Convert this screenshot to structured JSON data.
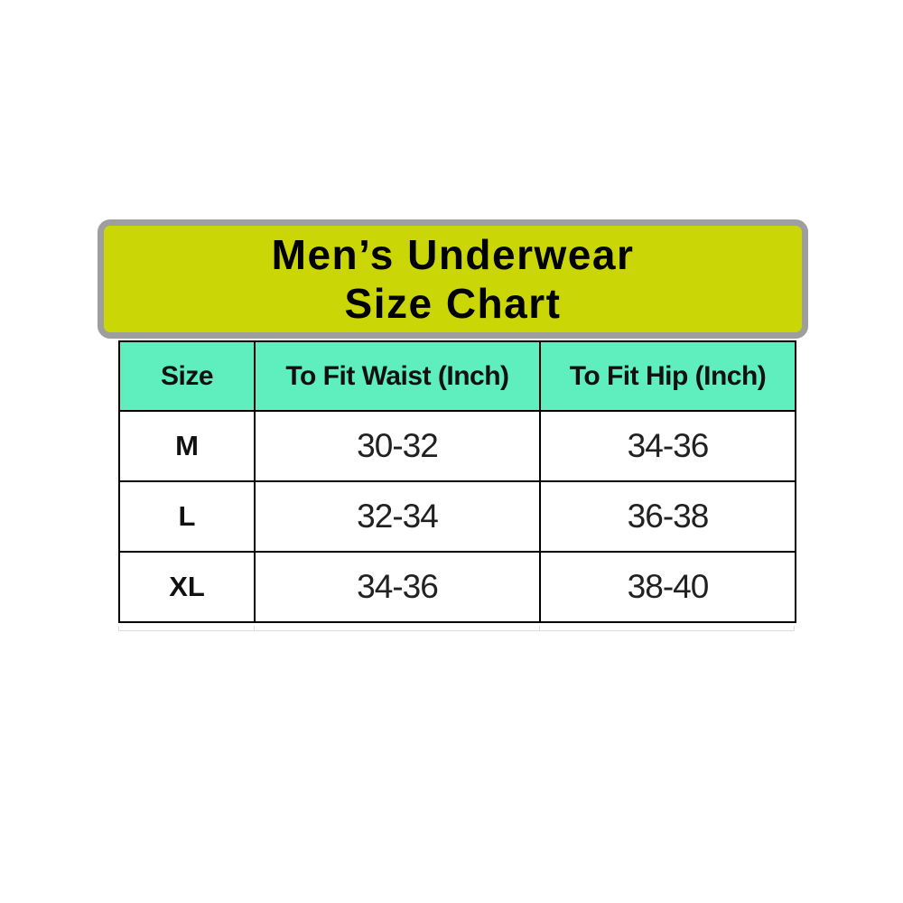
{
  "title": {
    "line1": "Men’s Underwear",
    "line2": "Size Chart"
  },
  "table": {
    "headers": [
      "Size",
      "To Fit Waist (Inch)",
      "To Fit Hip (Inch)"
    ],
    "rows": [
      {
        "size": "M",
        "waist": "30-32",
        "hip": "34-36"
      },
      {
        "size": "L",
        "waist": "32-34",
        "hip": "36-38"
      },
      {
        "size": "XL",
        "waist": "34-36",
        "hip": "38-40"
      }
    ]
  },
  "chart_data": {
    "type": "table",
    "title": "Men’s Underwear Size Chart",
    "columns": [
      "Size",
      "To Fit Waist (Inch)",
      "To Fit Hip (Inch)"
    ],
    "rows": [
      [
        "M",
        "30-32",
        "34-36"
      ],
      [
        "L",
        "32-34",
        "36-38"
      ],
      [
        "XL",
        "34-36",
        "38-40"
      ]
    ]
  },
  "colors": {
    "title_bg": "#cbd606",
    "title_border": "#9e9e9e",
    "header_bg": "#5fefbf",
    "table_border": "#000000",
    "page_bg": "#ffffff"
  }
}
